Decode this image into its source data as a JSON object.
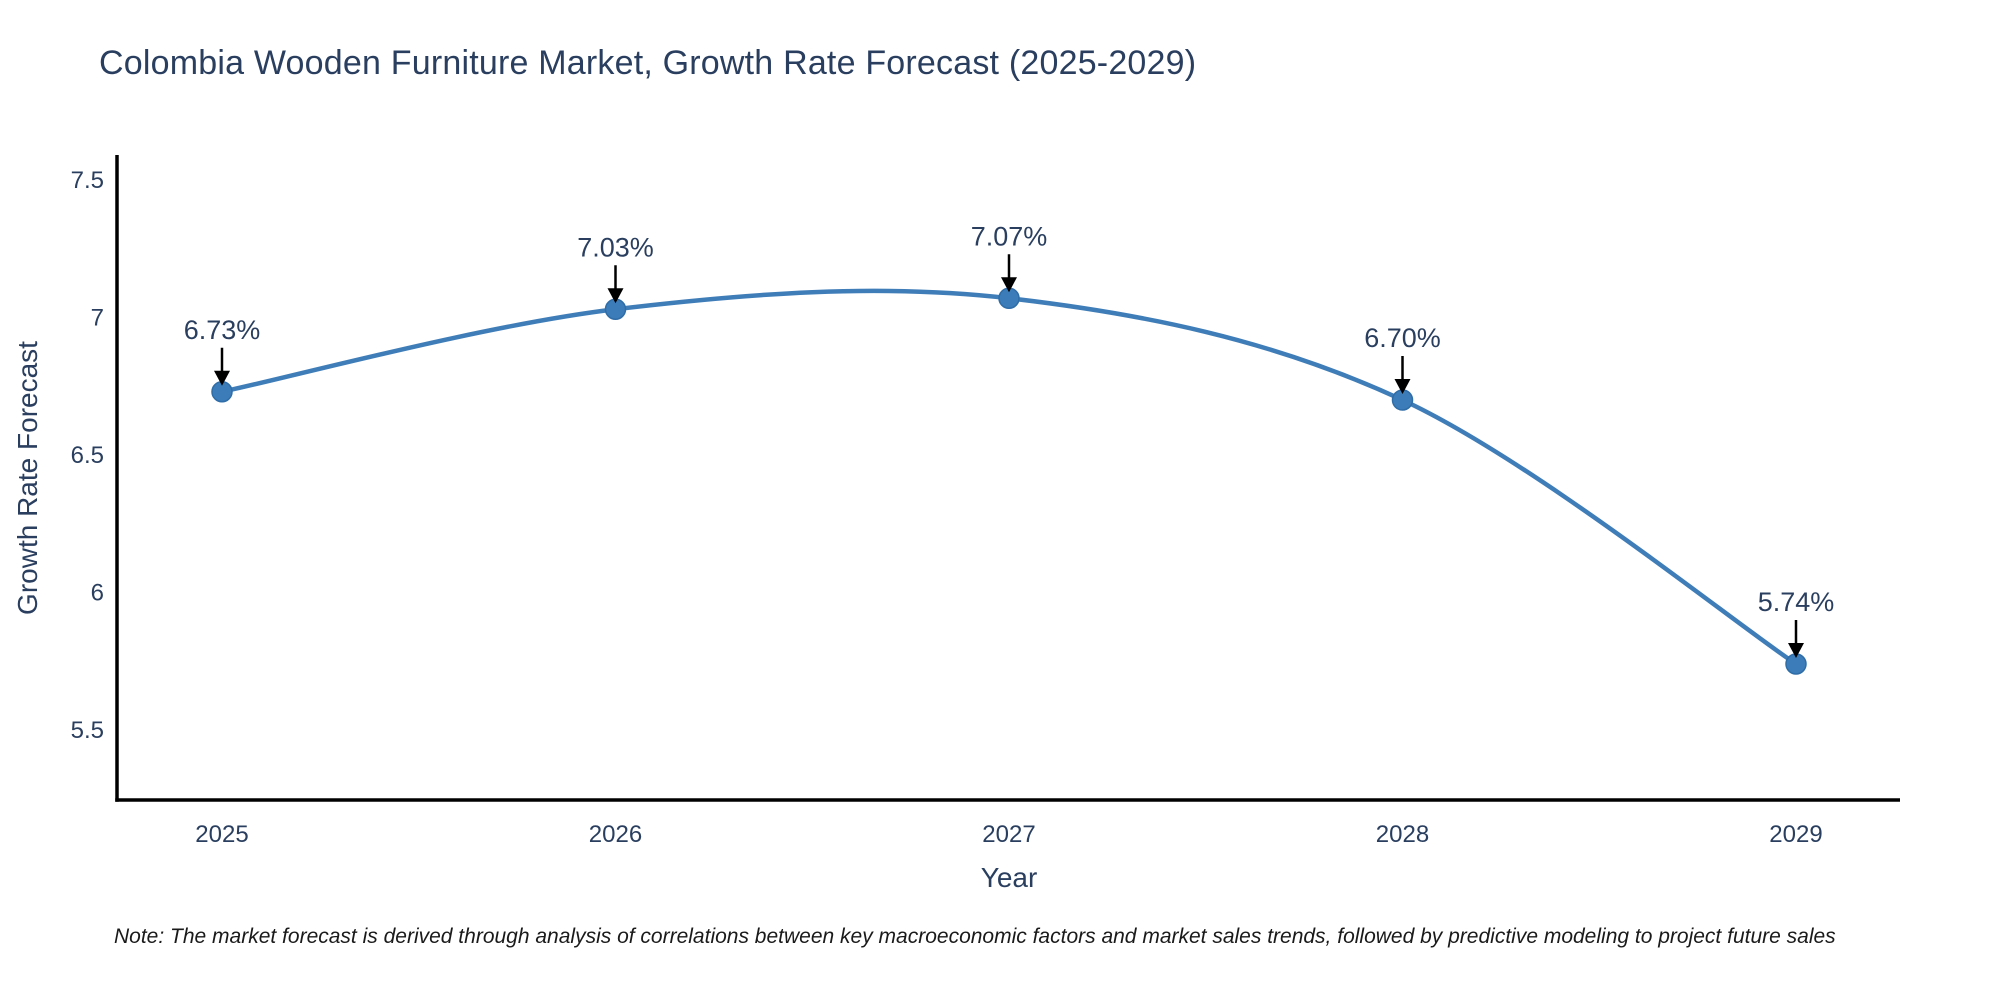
{
  "page": {
    "background": "#ffffff"
  },
  "chart_data": {
    "type": "line",
    "title": "Colombia Wooden Furniture Market, Growth Rate Forecast (2025-2029)",
    "xlabel": "Year",
    "ylabel": "Growth Rate Forecast",
    "categories": [
      "2025",
      "2026",
      "2027",
      "2028",
      "2029"
    ],
    "series": [
      {
        "name": "Growth Rate Forecast",
        "values": [
          6.73,
          7.03,
          7.07,
          6.7,
          5.74
        ]
      }
    ],
    "point_labels": [
      "6.73%",
      "7.03%",
      "7.07%",
      "6.70%",
      "5.74%"
    ],
    "ytick_labels": [
      "5.5",
      "6",
      "6.5",
      "7",
      "7.5"
    ],
    "ytick_values": [
      5.5,
      6.0,
      6.5,
      7.0,
      7.5
    ],
    "ylim": [
      5.25,
      7.6
    ],
    "grid": false,
    "legend_position": "none",
    "line_shape": "spline",
    "annotations_have_arrows": true,
    "colors": {
      "line": "#3f7db8",
      "marker_fill": "#3c7cb8",
      "marker_edge": "#2f6da8",
      "axis_line": "#000000",
      "text": "#2a3f5f",
      "annotation_arrow": "#000000",
      "note_text": "#1a1a1a"
    },
    "note": "Note: The market forecast is derived through analysis of correlations between key macroeconomic factors and market sales trends, followed by predictive modeling to project future sales"
  }
}
